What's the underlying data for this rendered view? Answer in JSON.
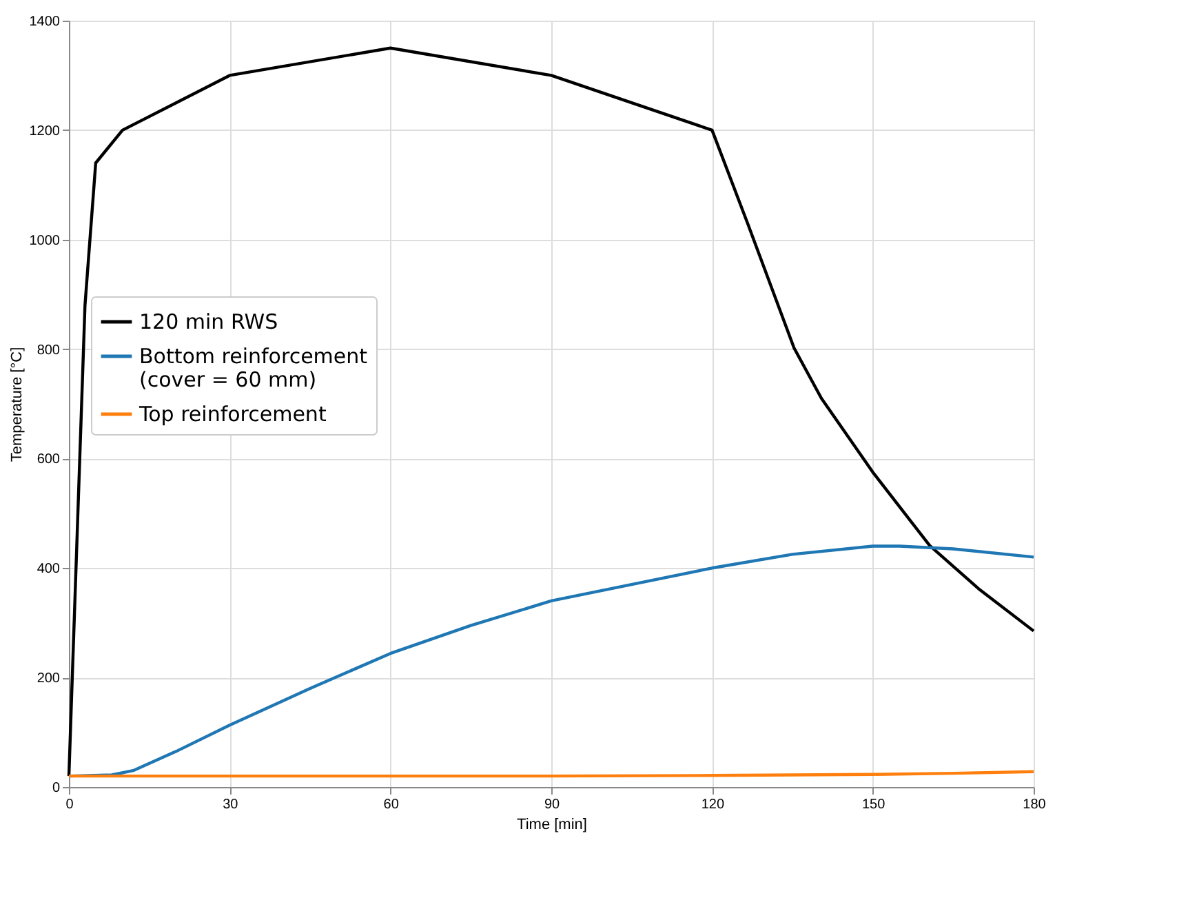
{
  "chart_data": {
    "type": "line",
    "xlabel": "Time [min]",
    "ylabel": "Temperature [°C]",
    "xlim": [
      0,
      180
    ],
    "xticks": [
      0,
      30,
      60,
      90,
      120,
      150,
      180
    ],
    "ylim": [
      0,
      1400
    ],
    "yticks": [
      0,
      200,
      400,
      600,
      800,
      1000,
      1200,
      1400
    ],
    "grid": true,
    "legend": "center left",
    "line_style": "solid",
    "marker": "none",
    "series": [
      {
        "name": "120 min RWS",
        "color": "#000000",
        "x": [
          0,
          3,
          5,
          10,
          30,
          60,
          90,
          120,
          126.7,
          135.3,
          140.4,
          150,
          160.6,
          170,
          180
        ],
        "values": [
          20,
          880,
          1140,
          1200,
          1300,
          1350,
          1300,
          1200,
          1028,
          802,
          710,
          575,
          441,
          360,
          285
        ]
      },
      {
        "name": "Bottom reinforcement\n(cover = 60 mm)",
        "color": "#1f77b4",
        "x": [
          0,
          8,
          12,
          20,
          30,
          45,
          60,
          75,
          90,
          105,
          120,
          135,
          150,
          155,
          165,
          180
        ],
        "values": [
          20,
          22,
          30,
          65,
          113,
          180,
          244,
          295,
          340,
          370,
          400,
          425,
          440,
          440,
          435,
          420
        ]
      },
      {
        "name": "Top reinforcement",
        "color": "#ff7f0e",
        "x": [
          0,
          30,
          60,
          90,
          120,
          150,
          165,
          180
        ],
        "values": [
          20,
          20,
          20,
          20,
          21,
          23,
          25,
          28
        ]
      }
    ]
  }
}
